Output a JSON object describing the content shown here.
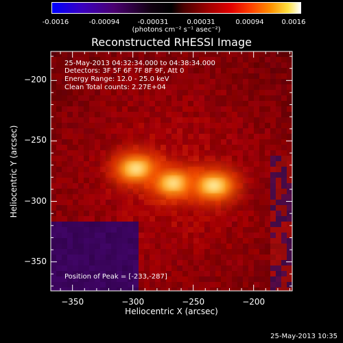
{
  "colorbar": {
    "ticks": [
      "-0.0016",
      "-0.00094",
      "-0.00031",
      "0.00031",
      "0.00094",
      "0.0016"
    ],
    "unit_label": "(photons cm⁻² s⁻¹ asec⁻²)",
    "scheme": "blue-purple-black-red-orange-yellow-white"
  },
  "title": "Reconstructed RHESSI Image",
  "annotations": {
    "line1": "25-May-2013 04:32:34.000 to 04:38:34.000",
    "line2": "Detectors: 3F 5F 6F 7F 8F 9F, Att 0",
    "line3": "Energy Range: 12.0 - 25.0 keV",
    "line4": "Clean    Total counts: 2.27E+04",
    "peak": "Position of Peak = [-233,-287]"
  },
  "footer": "25-May-2013 10:35",
  "chart_data": {
    "type": "heatmap",
    "title": "Reconstructed RHESSI Image",
    "xlabel": "Heliocentric X (arcsec)",
    "ylabel": "Heliocentric Y (arcsec)",
    "xlim": [
      -368,
      -168
    ],
    "ylim": [
      -374,
      -176
    ],
    "xticks": [
      -350,
      -300,
      -250,
      -200
    ],
    "yticks": [
      -200,
      -250,
      -300,
      -350
    ],
    "color_range": [
      -0.0016,
      0.0016
    ],
    "peak_position": [
      -233,
      -287
    ],
    "sources": [
      {
        "x": -297,
        "y": -273,
        "rel_intensity": 0.95
      },
      {
        "x": -266,
        "y": -285,
        "rel_intensity": 0.9
      },
      {
        "x": -233,
        "y": -287,
        "rel_intensity": 1.0
      }
    ]
  }
}
